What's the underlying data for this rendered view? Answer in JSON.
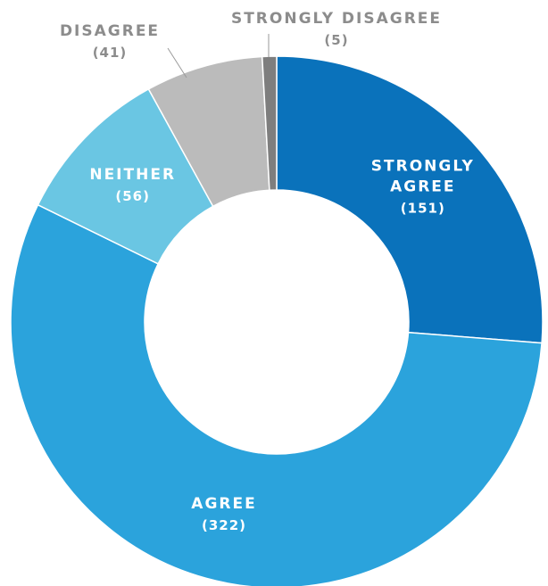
{
  "chart_data": {
    "type": "pie",
    "variant": "donut",
    "slices": [
      {
        "label_lines": [
          "STRONGLY",
          "AGREE"
        ],
        "count_text": "(151)",
        "value": 151,
        "color": "#0a72bb",
        "label_placement": "inside"
      },
      {
        "label_lines": [
          "AGREE"
        ],
        "count_text": "(322)",
        "value": 322,
        "color": "#2ba3dc",
        "label_placement": "inside"
      },
      {
        "label_lines": [
          "NEITHER"
        ],
        "count_text": "(56)",
        "value": 56,
        "color": "#6ac6e3",
        "label_placement": "inside"
      },
      {
        "label_lines": [
          "DISAGREE"
        ],
        "count_text": "(41)",
        "value": 41,
        "color": "#bbbbbb",
        "label_placement": "outside"
      },
      {
        "label_lines": [
          "STRONGLY DISAGREE"
        ],
        "count_text": "(5)",
        "value": 5,
        "color": "#7e7e7e",
        "label_placement": "outside"
      }
    ],
    "inside_label_color": "#ffffff",
    "outside_label_color": "#8c8c8c",
    "leader_line_color": "#9a9a9a",
    "separator_color": "#ffffff",
    "start": "12 o'clock",
    "direction": "clockwise",
    "legend": "none"
  }
}
